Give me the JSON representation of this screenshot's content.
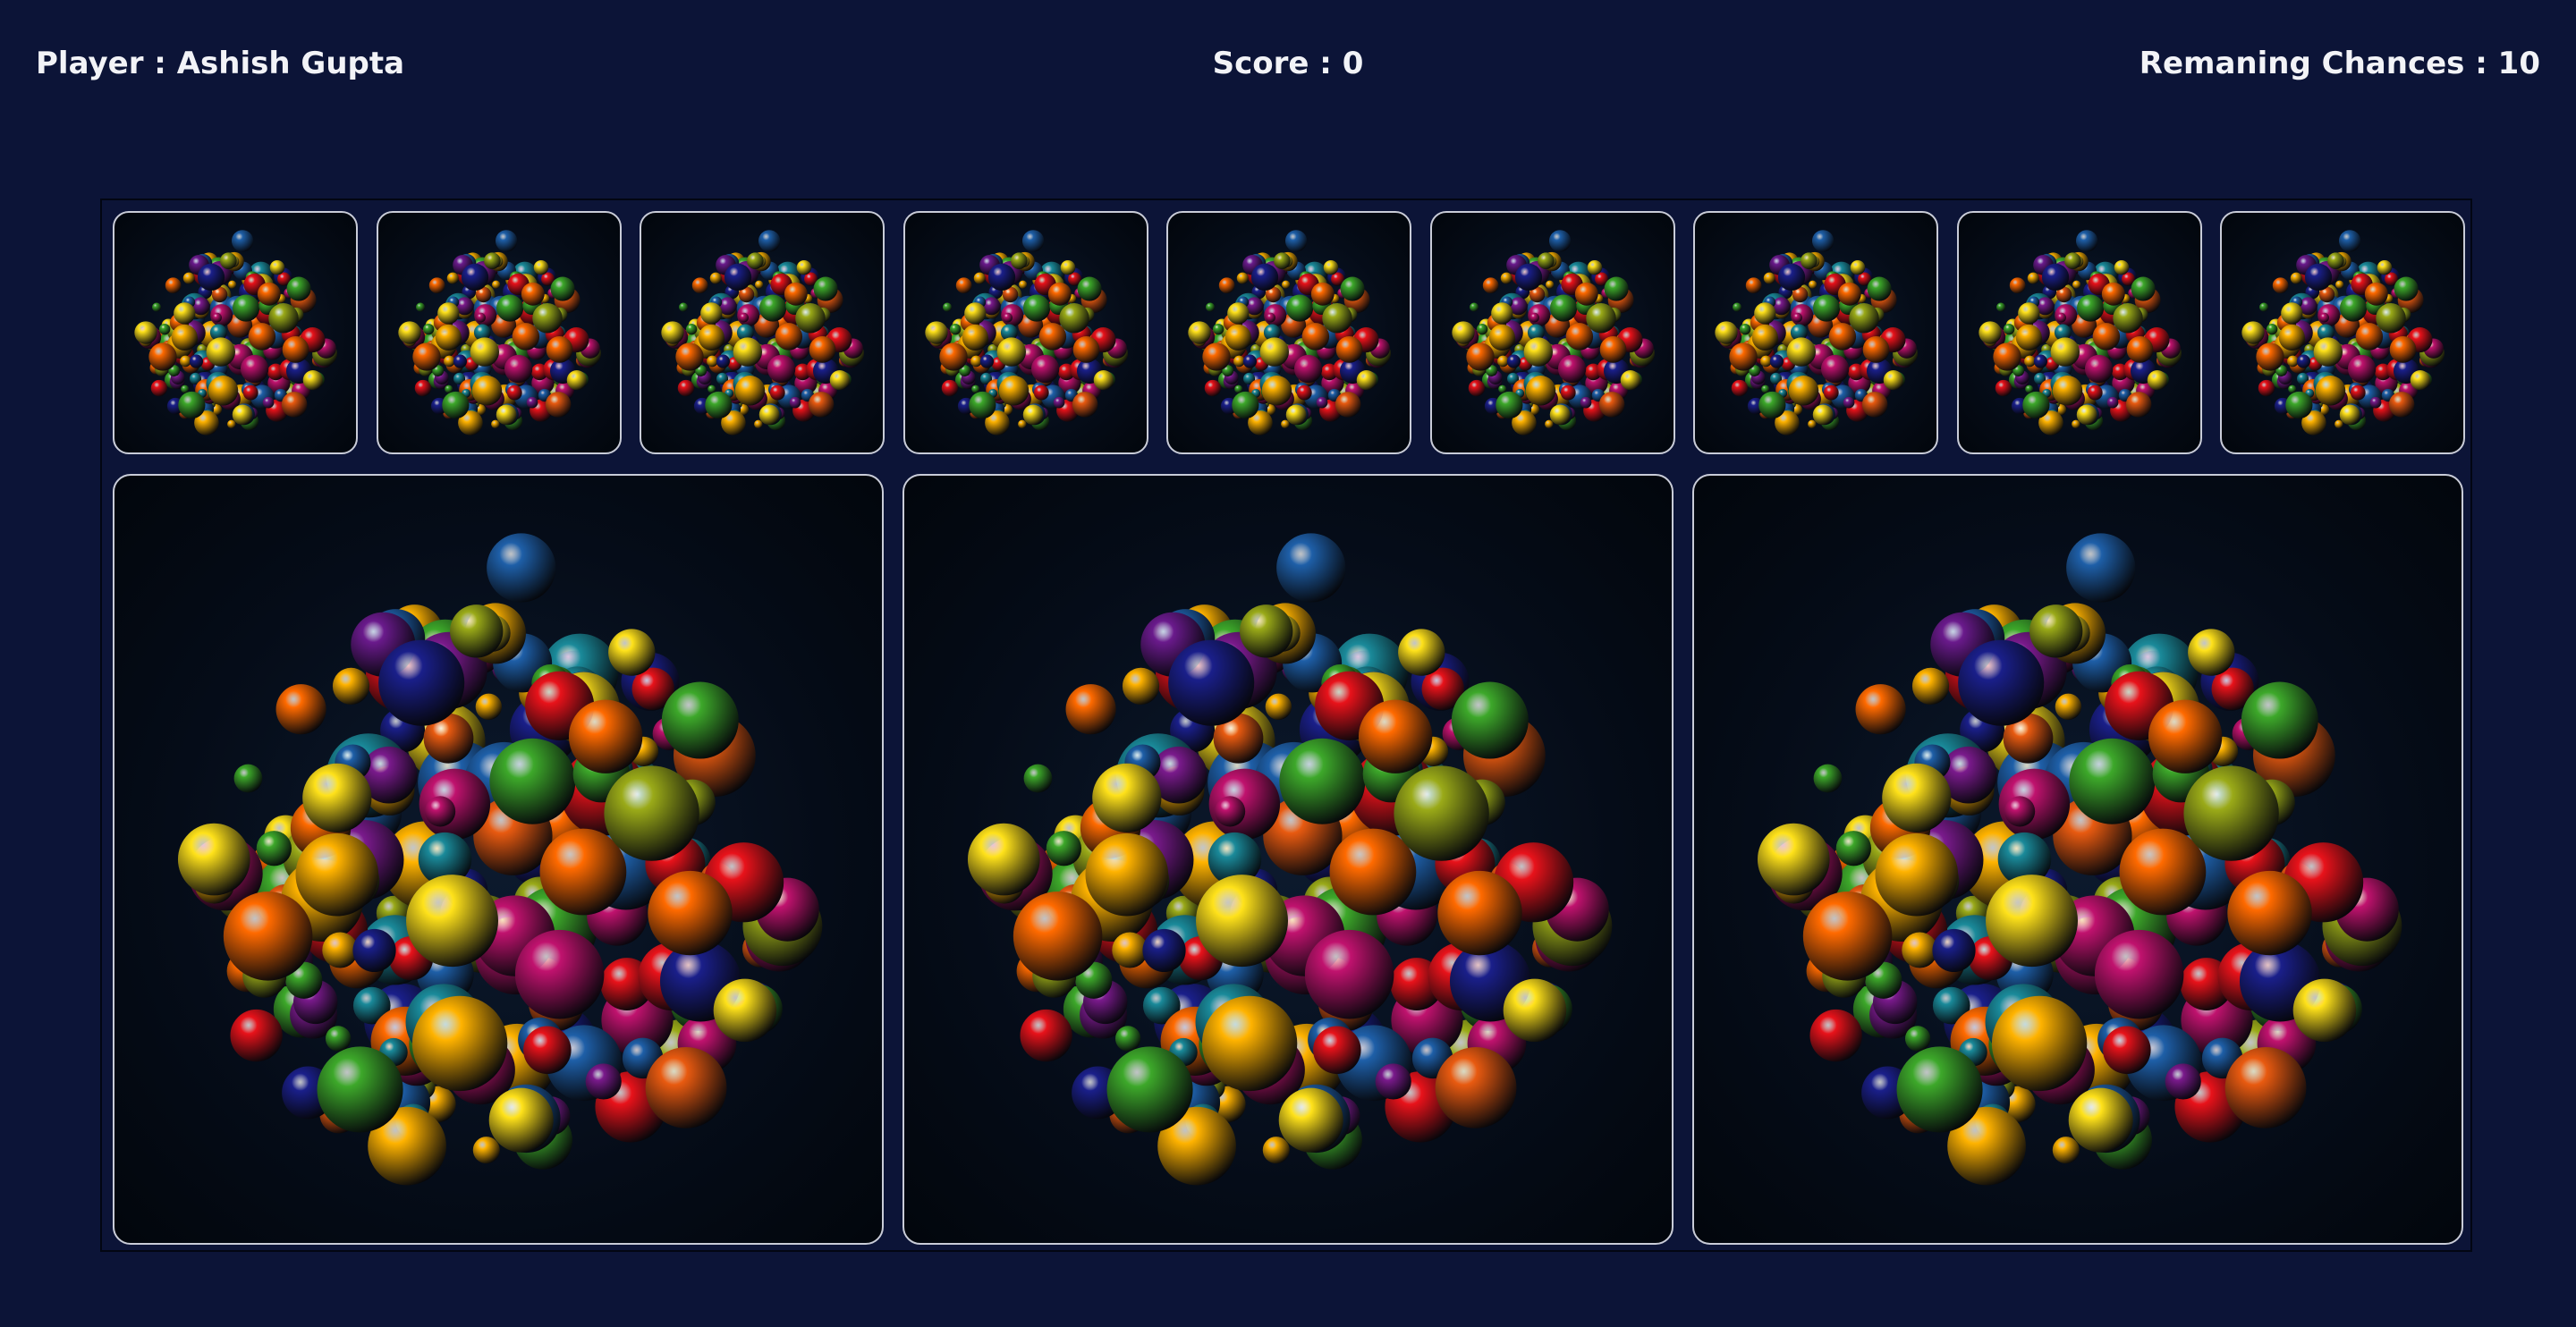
{
  "hud": {
    "player_label": "Player : ",
    "player_name": "Ashish Gupta",
    "score_label": "Score : ",
    "score_value": "0",
    "chances_label": "Remaning Chances : ",
    "chances_value": "10"
  },
  "board": {
    "small_cards": [
      {
        "image": "colorful-spheres-cluster",
        "state": "face-down"
      },
      {
        "image": "colorful-spheres-cluster",
        "state": "face-down"
      },
      {
        "image": "colorful-spheres-cluster",
        "state": "face-down"
      },
      {
        "image": "colorful-spheres-cluster",
        "state": "face-down"
      },
      {
        "image": "colorful-spheres-cluster",
        "state": "face-down"
      },
      {
        "image": "colorful-spheres-cluster",
        "state": "face-down"
      },
      {
        "image": "colorful-spheres-cluster",
        "state": "face-down"
      },
      {
        "image": "colorful-spheres-cluster",
        "state": "face-down"
      },
      {
        "image": "colorful-spheres-cluster",
        "state": "face-down"
      }
    ],
    "large_cards": [
      {
        "image": "colorful-spheres-cluster",
        "state": "face-down"
      },
      {
        "image": "colorful-spheres-cluster",
        "state": "face-down"
      },
      {
        "image": "colorful-spheres-cluster",
        "state": "face-down"
      }
    ]
  },
  "colors": {
    "background": "#0c1437",
    "card_border": "#c9ccd8",
    "card_bg": "#050c18",
    "sphere_palette": [
      "#e8121a",
      "#ff6a00",
      "#ffb300",
      "#ffe21a",
      "#9aaa18",
      "#3da82a",
      "#1a8a9a",
      "#1e5fa8",
      "#1a1f8a",
      "#7a1a8c",
      "#c0126e",
      "#e85a10"
    ]
  }
}
